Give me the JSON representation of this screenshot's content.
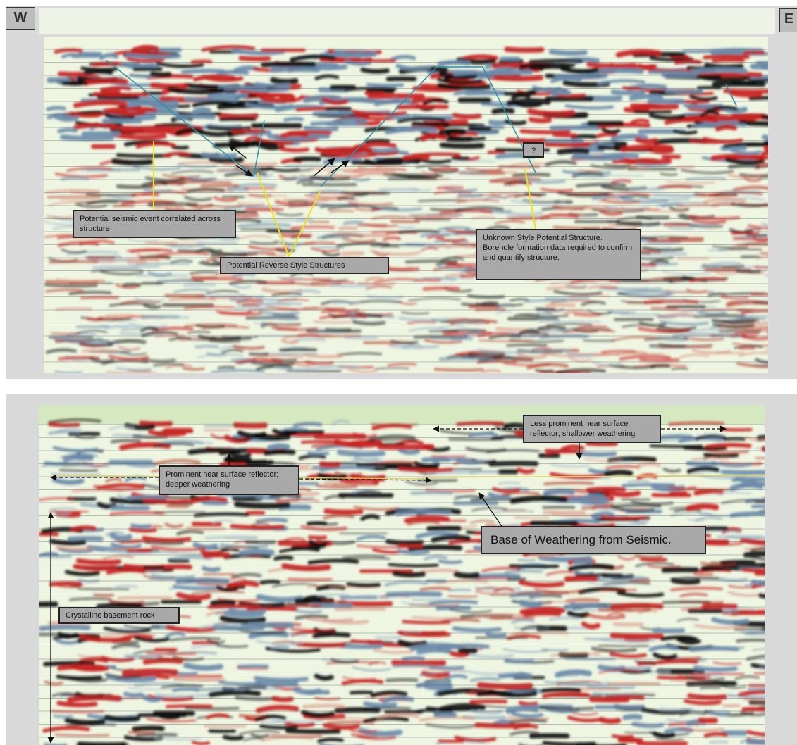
{
  "top_panel": {
    "west_label": "W",
    "east_label": "E",
    "annotations": [
      "Potential seismic event correlated across structure",
      "Potential Reverse Style Structures",
      "Unknown Style Potential Structure. Borehole formation data required to confirm and quantify structure.",
      "?"
    ]
  },
  "bottom_panel": {
    "annotations": [
      "Less prominent near surface reflector; shallower weathering",
      "Prominent near surface reflector; deeper weathering",
      "Base of Weathering from Seismic.",
      "Crystalline basement rock"
    ]
  }
}
